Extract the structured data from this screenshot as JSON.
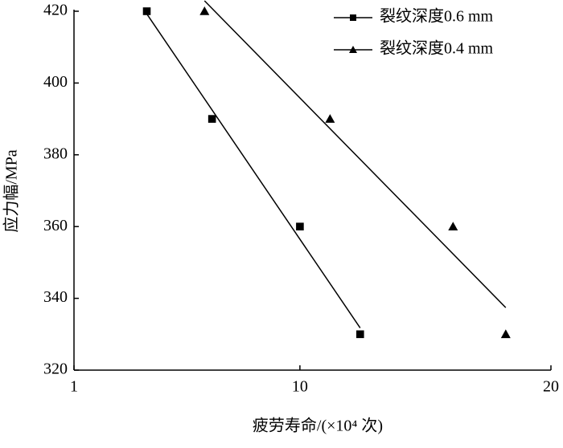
{
  "chart_data": {
    "type": "scatter",
    "x_label": "疲劳寿命/(×10⁴ 次)",
    "y_label": "应力幅/MPa",
    "series": [
      {
        "name": "裂纹深度0.6 mm",
        "color": "#000000",
        "marker": "square",
        "x": [
          3.9,
          6.5,
          10,
          12.4
        ],
        "values": [
          420,
          390,
          360,
          330
        ]
      },
      {
        "name": "裂纹深度0.4 mm",
        "color": "#000000",
        "marker": "triangle",
        "x": [
          6.2,
          11.2,
          16.1,
          18.2
        ],
        "values": [
          420,
          390,
          360,
          330
        ]
      }
    ],
    "xlim": [
      1,
      20
    ],
    "xticks": [
      1,
      10,
      20
    ],
    "ylim": [
      320,
      420
    ],
    "yticks": [
      320,
      340,
      360,
      380,
      400,
      420
    ],
    "fit_line": true,
    "legend": "top-right"
  }
}
